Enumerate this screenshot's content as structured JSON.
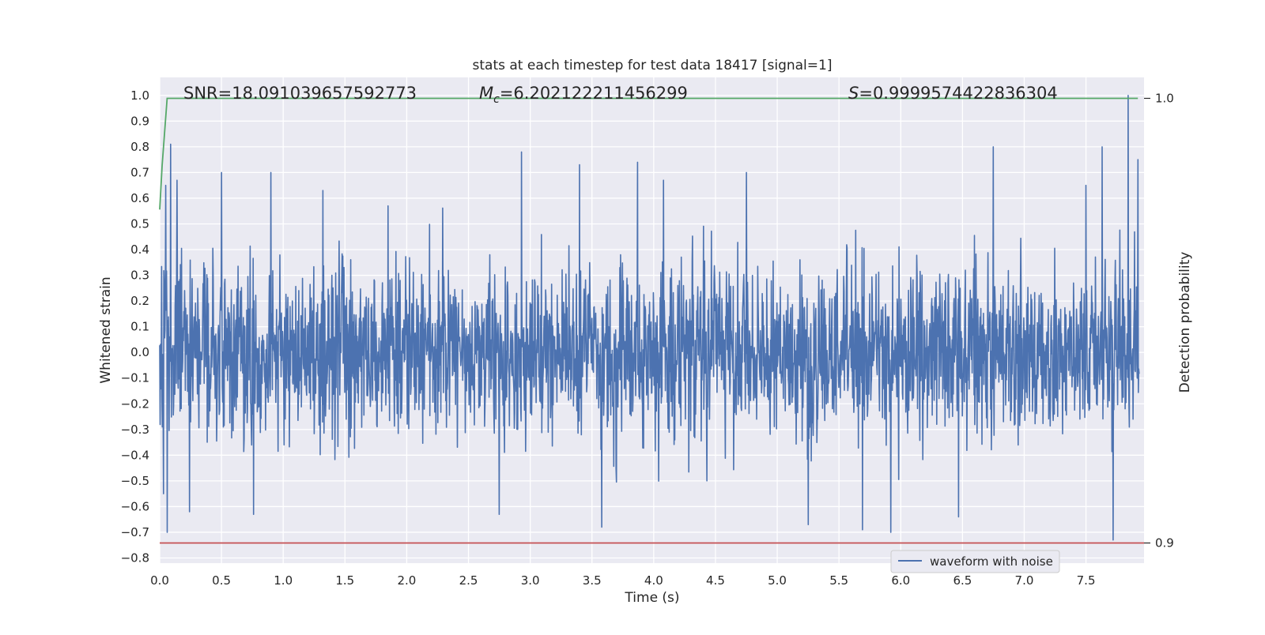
{
  "chart_data": {
    "type": "line",
    "title": "stats at each timestep for test data 18417 [signal=1]",
    "xlabel": "Time (s)",
    "ylabel": "Whitened strain",
    "y2label": "Detection probability",
    "xlim": [
      0.0,
      7.97
    ],
    "ylim": [
      -0.82,
      1.07
    ],
    "y2lim": [
      0.9,
      1.0
    ],
    "x_ticks": [
      0.0,
      0.5,
      1.0,
      1.5,
      2.0,
      2.5,
      3.0,
      3.5,
      4.0,
      4.5,
      5.0,
      5.5,
      6.0,
      6.5,
      7.0,
      7.5
    ],
    "x_tick_labels": [
      "0.0",
      "0.5",
      "1.0",
      "1.5",
      "2.0",
      "2.5",
      "3.0",
      "3.5",
      "4.0",
      "4.5",
      "5.0",
      "5.5",
      "6.0",
      "6.5",
      "7.0",
      "7.5"
    ],
    "y_ticks": [
      1.0,
      0.9,
      0.8,
      0.7,
      0.6,
      0.5,
      0.4,
      0.3,
      0.2,
      0.1,
      0.0,
      -0.1,
      -0.2,
      -0.3,
      -0.4,
      -0.5,
      -0.6,
      -0.7,
      -0.8
    ],
    "y_tick_labels": [
      "1.0",
      "0.9",
      "0.8",
      "0.7",
      "0.6",
      "0.5",
      "0.4",
      "0.3",
      "0.2",
      "0.1",
      "0.0",
      "−0.1",
      "−0.2",
      "−0.3",
      "−0.4",
      "−0.5",
      "−0.6",
      "−0.7",
      "−0.8"
    ],
    "y2_ticks": [
      1.0,
      0.9
    ],
    "y2_tick_labels": [
      "1.0",
      "0.9"
    ],
    "grid": true,
    "legend_position": "lower-right",
    "annotations": {
      "snr": "SNR=18.091039657592773",
      "mc_symbol": "M",
      "mc_sub": "c",
      "mc_value": "=6.202122211456299",
      "s_symbol": "S",
      "s_value": "=0.9999574422836304"
    },
    "series": [
      {
        "name": "waveform with noise",
        "axis": "left",
        "color": "#4c72b0",
        "kind": "noise",
        "sample_count": 2600,
        "std_estimate": 0.16,
        "extremes": [
          {
            "x": 0.05,
            "y": 0.65
          },
          {
            "x": 0.09,
            "y": 0.81
          },
          {
            "x": 0.14,
            "y": 0.67
          },
          {
            "x": 0.03,
            "y": -0.55
          },
          {
            "x": 0.06,
            "y": -0.7
          },
          {
            "x": 0.24,
            "y": -0.62
          },
          {
            "x": 0.5,
            "y": 0.7
          },
          {
            "x": 0.9,
            "y": 0.7
          },
          {
            "x": 1.32,
            "y": 0.63
          },
          {
            "x": 0.76,
            "y": -0.63
          },
          {
            "x": 1.85,
            "y": 0.57
          },
          {
            "x": 2.93,
            "y": 0.78
          },
          {
            "x": 2.75,
            "y": -0.63
          },
          {
            "x": 3.4,
            "y": 0.73
          },
          {
            "x": 3.58,
            "y": -0.68
          },
          {
            "x": 3.87,
            "y": 0.74
          },
          {
            "x": 4.08,
            "y": 0.67
          },
          {
            "x": 4.75,
            "y": 0.7
          },
          {
            "x": 5.25,
            "y": -0.67
          },
          {
            "x": 5.69,
            "y": -0.69
          },
          {
            "x": 5.92,
            "y": -0.7
          },
          {
            "x": 6.47,
            "y": -0.64
          },
          {
            "x": 6.75,
            "y": 0.8
          },
          {
            "x": 7.5,
            "y": 0.65
          },
          {
            "x": 7.63,
            "y": 0.8
          },
          {
            "x": 7.72,
            "y": -0.73
          },
          {
            "x": 7.84,
            "y": 1.0
          },
          {
            "x": 7.92,
            "y": 0.75
          }
        ]
      },
      {
        "name": "",
        "axis": "right",
        "color": "#55a868",
        "points": [
          [
            0.0,
            0.975
          ],
          [
            0.02,
            0.985
          ],
          [
            0.06,
            1.0
          ],
          [
            7.92,
            1.0
          ]
        ]
      },
      {
        "name": "",
        "axis": "right",
        "color": "#c44e52",
        "points": [
          [
            0.0,
            0.9
          ],
          [
            7.97,
            0.9
          ]
        ]
      }
    ]
  }
}
